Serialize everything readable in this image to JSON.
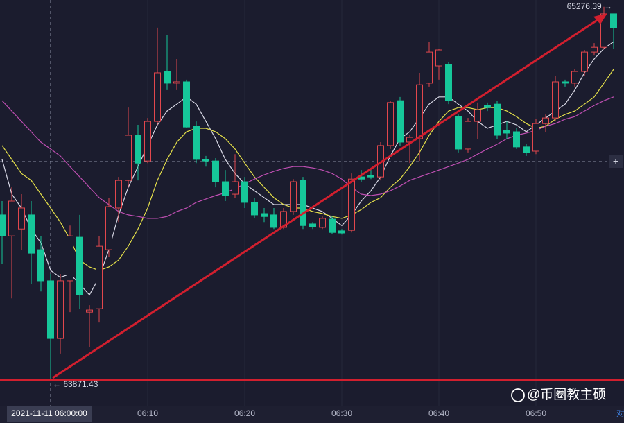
{
  "chart_data": {
    "type": "candlestick",
    "categories": [
      null,
      null,
      null,
      null,
      null,
      null,
      null,
      null,
      null,
      null,
      null,
      null,
      null,
      null,
      null,
      "06:10",
      null,
      null,
      null,
      null,
      null,
      null,
      null,
      null,
      null,
      "06:20",
      null,
      null,
      null,
      null,
      null,
      null,
      null,
      null,
      null,
      "06:30",
      null,
      null,
      null,
      null,
      null,
      null,
      null,
      null,
      null,
      "06:40",
      null,
      null,
      null,
      null,
      null,
      null,
      null,
      null,
      null,
      "06:50",
      null,
      null,
      null,
      null,
      null,
      null,
      null,
      null
    ],
    "open": [
      64493,
      64414,
      64440,
      64493,
      64362,
      64245,
      64028,
      64245,
      64409,
      64127,
      64140,
      64362,
      64519,
      64623,
      64793,
      64696,
      64845,
      65033,
      64989,
      64994,
      64827,
      64702,
      64696,
      64618,
      64571,
      64618,
      64540,
      64498,
      64493,
      64446,
      64506,
      64623,
      64459,
      64446,
      64477,
      64433,
      64435,
      64636,
      64641,
      64636,
      64754,
      64923,
      64767,
      64780,
      64989,
      65054,
      65059,
      64863,
      64741,
      64845,
      64905,
      64910,
      64811,
      64806,
      64749,
      64733,
      64837,
      64858,
      64994,
      64989,
      65033,
      65106,
      65124,
      65250
    ],
    "high": [
      64545,
      64597,
      64571,
      64545,
      64414,
      64271,
      64271,
      64453,
      64493,
      64153,
      64414,
      64558,
      64636,
      64897,
      64832,
      64858,
      65198,
      65171,
      65080,
      65002,
      64845,
      64715,
      64707,
      64662,
      64722,
      64636,
      64558,
      64519,
      64519,
      64519,
      64628,
      64636,
      64466,
      64487,
      64487,
      64440,
      64649,
      64662,
      64662,
      64767,
      64923,
      64937,
      64793,
      65028,
      65145,
      65119,
      65067,
      64871,
      64858,
      64916,
      64916,
      64923,
      64845,
      64819,
      64759,
      64853,
      64871,
      65015,
      65002,
      65041,
      65114,
      65140,
      65276.39,
      65250
    ],
    "low": [
      64310,
      64179,
      64362,
      64232,
      64205,
      63871.43,
      63971,
      64127,
      64140,
      63997,
      64088,
      64336,
      64466,
      64597,
      64623,
      64688,
      64832,
      64963,
      64963,
      64819,
      64688,
      64675,
      64597,
      64545,
      64558,
      64519,
      64480,
      64466,
      64440,
      64440,
      64493,
      64440,
      64440,
      64440,
      64422,
      64419,
      64427,
      64618,
      64628,
      64623,
      64741,
      64754,
      64688,
      64696,
      64976,
      65002,
      64910,
      64728,
      64728,
      64780,
      64884,
      64780,
      64780,
      64741,
      64715,
      64722,
      64806,
      64845,
      64976,
      64976,
      65015,
      65093,
      65119,
      65119
    ],
    "close": [
      64414,
      64545,
      64519,
      64349,
      64245,
      64028,
      64245,
      64414,
      64192,
      64135,
      64375,
      64524,
      64623,
      64793,
      64688,
      64845,
      65028,
      64989,
      64994,
      64824,
      64702,
      64696,
      64618,
      64566,
      64618,
      64540,
      64493,
      64487,
      64446,
      64506,
      64618,
      64453,
      64448,
      64480,
      64427,
      64425,
      64628,
      64628,
      64636,
      64754,
      64916,
      64767,
      64785,
      64983,
      65106,
      65114,
      64923,
      64741,
      64845,
      64889,
      64897,
      64793,
      64801,
      64749,
      64728,
      64837,
      64858,
      64994,
      64989,
      65033,
      65106,
      65124,
      65250,
      65198
    ],
    "up_color": "#e2474d",
    "down_color": "#16c79a",
    "series": [
      {
        "color": "#d9d9e6",
        "values": [
          64702,
          64571,
          64519,
          64440,
          64388,
          64284,
          64258,
          64271,
          64232,
          64192,
          64258,
          64362,
          64493,
          64597,
          64675,
          64754,
          64832,
          64884,
          64910,
          64937,
          64910,
          64845,
          64780,
          64702,
          64649,
          64610,
          64584,
          64558,
          64532,
          64532,
          64532,
          64532,
          64519,
          64506,
          64480,
          64453,
          64493,
          64545,
          64584,
          64636,
          64715,
          64780,
          64806,
          64858,
          64910,
          64937,
          64937,
          64910,
          64884,
          64845,
          64819,
          64832,
          64845,
          64832,
          64806,
          64832,
          64858,
          64884,
          64910,
          64963,
          65028,
          65080,
          65119,
          65145
        ]
      },
      {
        "color": "#e5e04a",
        "values": [
          64754,
          64702,
          64649,
          64623,
          64571,
          64519,
          64466,
          64401,
          64323,
          64297,
          64284,
          64297,
          64323,
          64375,
          64440,
          64519,
          64623,
          64702,
          64767,
          64806,
          64819,
          64819,
          64806,
          64780,
          64741,
          64688,
          64636,
          64597,
          64558,
          64532,
          64519,
          64519,
          64506,
          64498,
          64487,
          64480,
          64493,
          64513,
          64540,
          64558,
          64597,
          64628,
          64675,
          64728,
          64793,
          64845,
          64884,
          64897,
          64897,
          64889,
          64897,
          64897,
          64884,
          64863,
          64837,
          64819,
          64827,
          64853,
          64871,
          64884,
          64910,
          64937,
          64989,
          65041
        ]
      },
      {
        "color": "#c04fb3",
        "values": [
          64923,
          64884,
          64845,
          64806,
          64767,
          64741,
          64715,
          64675,
          64636,
          64597,
          64558,
          64532,
          64506,
          64493,
          64487,
          64480,
          64480,
          64487,
          64506,
          64519,
          64540,
          64553,
          64566,
          64576,
          64592,
          64610,
          64628,
          64644,
          64657,
          64668,
          64675,
          64675,
          64670,
          64662,
          64649,
          64628,
          64597,
          64571,
          64566,
          64571,
          64584,
          64602,
          64623,
          64636,
          64649,
          64662,
          64675,
          64688,
          64702,
          64722,
          64741,
          64759,
          64780,
          64793,
          64801,
          64811,
          64827,
          64837,
          64853,
          64863,
          64884,
          64905,
          64923,
          64937
        ]
      }
    ],
    "ylim": [
      63775,
      65302
    ],
    "high_marker": {
      "value": 65276.39,
      "label": "65276.39 →"
    },
    "low_marker": {
      "value": 63871.43,
      "label": "← 63871.43"
    },
    "crosshair_label": "2021-11-11 06:00:00"
  },
  "watermark": "@币圈教主硕",
  "corner_text": "对"
}
